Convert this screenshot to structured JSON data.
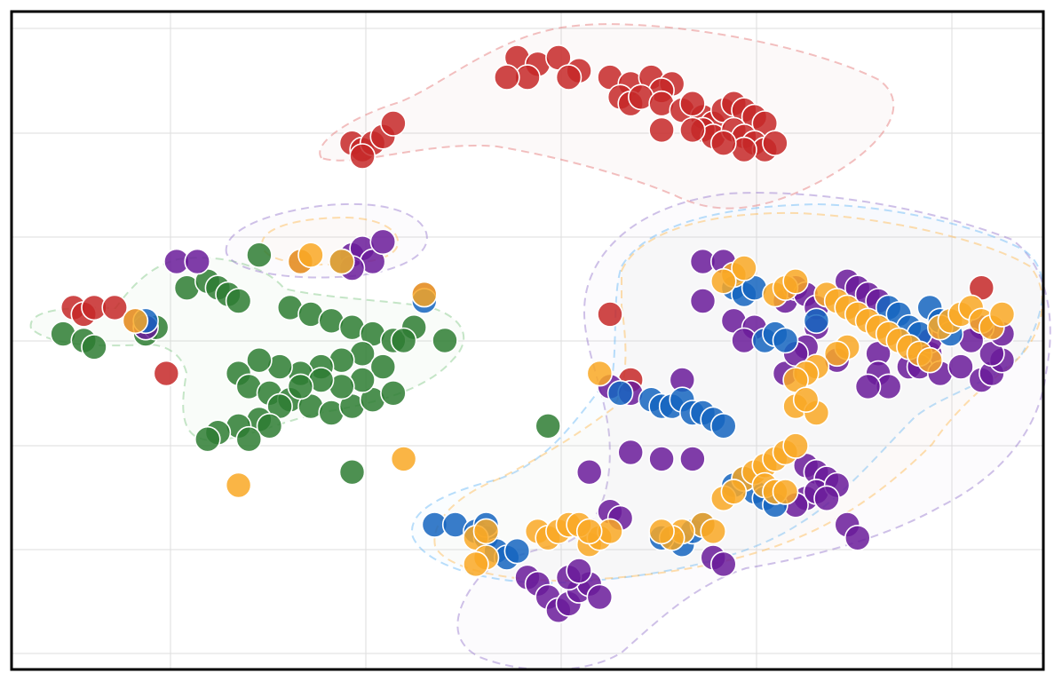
{
  "chart_data": {
    "type": "scatter",
    "title": "",
    "xlabel": "",
    "ylabel": "",
    "xlim": [
      0,
      100
    ],
    "ylim": [
      0,
      100
    ],
    "grid": true,
    "legend": "none",
    "colors": {
      "red": "#c62828",
      "green": "#2e7d32",
      "purple": "#6a1b9a",
      "blue": "#1565c0",
      "orange": "#f9a825"
    },
    "series": [
      {
        "name": "red",
        "color": "#c62828",
        "points": [
          [
            49,
            93
          ],
          [
            51,
            92
          ],
          [
            53,
            93
          ],
          [
            55,
            91
          ],
          [
            54,
            90
          ],
          [
            50,
            90
          ],
          [
            58,
            90
          ],
          [
            60,
            89
          ],
          [
            62,
            90
          ],
          [
            64,
            89
          ],
          [
            63,
            88
          ],
          [
            59,
            87
          ],
          [
            60,
            86
          ],
          [
            61,
            87
          ],
          [
            63,
            86
          ],
          [
            65,
            85
          ],
          [
            67,
            84
          ],
          [
            68,
            83
          ],
          [
            69,
            85
          ],
          [
            70,
            86
          ],
          [
            71,
            85
          ],
          [
            72,
            84
          ],
          [
            73,
            83
          ],
          [
            67,
            82
          ],
          [
            68,
            81
          ],
          [
            70,
            82
          ],
          [
            71,
            81
          ],
          [
            72,
            80
          ],
          [
            73,
            79
          ],
          [
            74,
            80
          ],
          [
            71,
            79
          ],
          [
            69,
            80
          ],
          [
            66,
            82
          ],
          [
            33,
            80
          ],
          [
            34,
            79
          ],
          [
            35,
            80
          ],
          [
            36,
            81
          ],
          [
            34,
            78
          ],
          [
            37,
            83
          ],
          [
            48,
            90
          ],
          [
            6,
            55
          ],
          [
            7,
            54
          ],
          [
            8,
            55
          ],
          [
            10,
            55
          ],
          [
            15,
            45
          ],
          [
            58,
            54
          ],
          [
            60,
            44
          ],
          [
            94,
            58
          ],
          [
            63,
            82
          ],
          [
            66,
            86
          ]
        ]
      },
      {
        "name": "green",
        "color": "#2e7d32",
        "points": [
          [
            5,
            51
          ],
          [
            7,
            50
          ],
          [
            8,
            49
          ],
          [
            13,
            51
          ],
          [
            14,
            52
          ],
          [
            17,
            58
          ],
          [
            19,
            59
          ],
          [
            20,
            58
          ],
          [
            21,
            57
          ],
          [
            22,
            56
          ],
          [
            27,
            55
          ],
          [
            29,
            54
          ],
          [
            31,
            53
          ],
          [
            33,
            52
          ],
          [
            35,
            51
          ],
          [
            37,
            50
          ],
          [
            39,
            52
          ],
          [
            38,
            50
          ],
          [
            34,
            48
          ],
          [
            32,
            47
          ],
          [
            30,
            46
          ],
          [
            28,
            45
          ],
          [
            26,
            46
          ],
          [
            24,
            47
          ],
          [
            22,
            45
          ],
          [
            23,
            43
          ],
          [
            25,
            42
          ],
          [
            27,
            41
          ],
          [
            29,
            40
          ],
          [
            31,
            39
          ],
          [
            33,
            40
          ],
          [
            35,
            41
          ],
          [
            37,
            42
          ],
          [
            36,
            46
          ],
          [
            34,
            44
          ],
          [
            32,
            43
          ],
          [
            30,
            44
          ],
          [
            28,
            43
          ],
          [
            26,
            40
          ],
          [
            24,
            38
          ],
          [
            22,
            37
          ],
          [
            20,
            36
          ],
          [
            25,
            37
          ],
          [
            19,
            35
          ],
          [
            23,
            35
          ],
          [
            24,
            63
          ],
          [
            33,
            30
          ],
          [
            52,
            37
          ],
          [
            42,
            50
          ]
        ]
      },
      {
        "name": "purple",
        "color": "#6a1b9a",
        "points": [
          [
            16,
            62
          ],
          [
            18,
            62
          ],
          [
            28,
            62
          ],
          [
            33,
            63
          ],
          [
            34,
            64
          ],
          [
            35,
            62
          ],
          [
            36,
            65
          ],
          [
            33,
            61
          ],
          [
            40,
            57
          ],
          [
            12,
            53
          ],
          [
            13,
            52
          ],
          [
            67,
            62
          ],
          [
            69,
            62
          ],
          [
            67,
            56
          ],
          [
            70,
            53
          ],
          [
            72,
            52
          ],
          [
            71,
            50
          ],
          [
            75,
            56
          ],
          [
            76,
            58
          ],
          [
            77,
            57
          ],
          [
            78,
            55
          ],
          [
            81,
            59
          ],
          [
            82,
            58
          ],
          [
            83,
            57
          ],
          [
            84,
            56
          ],
          [
            78,
            52
          ],
          [
            77,
            49
          ],
          [
            80,
            47
          ],
          [
            84,
            48
          ],
          [
            87,
            46
          ],
          [
            89,
            48
          ],
          [
            88,
            46
          ],
          [
            90,
            45
          ],
          [
            92,
            46
          ],
          [
            94,
            44
          ],
          [
            95,
            45
          ],
          [
            96,
            47
          ],
          [
            95,
            48
          ],
          [
            96,
            51
          ],
          [
            94,
            52
          ],
          [
            93,
            50
          ],
          [
            89,
            50
          ],
          [
            84,
            45
          ],
          [
            85,
            43
          ],
          [
            83,
            43
          ],
          [
            75,
            45
          ],
          [
            76,
            48
          ],
          [
            58,
            43
          ],
          [
            60,
            42
          ],
          [
            60,
            33
          ],
          [
            63,
            32
          ],
          [
            65,
            44
          ],
          [
            66,
            32
          ],
          [
            77,
            31
          ],
          [
            78,
            30
          ],
          [
            79,
            29
          ],
          [
            77,
            26
          ],
          [
            76,
            25
          ],
          [
            78,
            27
          ],
          [
            80,
            28
          ],
          [
            79,
            26
          ],
          [
            81,
            22
          ],
          [
            82,
            20
          ],
          [
            56,
            30
          ],
          [
            58,
            24
          ],
          [
            59,
            23
          ],
          [
            68,
            17
          ],
          [
            69,
            16
          ],
          [
            50,
            14
          ],
          [
            51,
            13
          ],
          [
            52,
            11
          ],
          [
            53,
            9
          ],
          [
            54,
            10
          ],
          [
            55,
            12
          ],
          [
            56,
            13
          ],
          [
            57,
            11
          ],
          [
            54,
            14
          ],
          [
            55,
            15
          ]
        ]
      },
      {
        "name": "blue",
        "color": "#1565c0",
        "points": [
          [
            13,
            53
          ],
          [
            32,
            62
          ],
          [
            40,
            56
          ],
          [
            59,
            42
          ],
          [
            62,
            41
          ],
          [
            63,
            40
          ],
          [
            64,
            40
          ],
          [
            65,
            41
          ],
          [
            66,
            39
          ],
          [
            67,
            39
          ],
          [
            68,
            38
          ],
          [
            69,
            37
          ],
          [
            72,
            27
          ],
          [
            73,
            26
          ],
          [
            74,
            25
          ],
          [
            70,
            28
          ],
          [
            71,
            29
          ],
          [
            64,
            20
          ],
          [
            65,
            19
          ],
          [
            66,
            21
          ],
          [
            67,
            22
          ],
          [
            41,
            22
          ],
          [
            43,
            22
          ],
          [
            45,
            21
          ],
          [
            46,
            20
          ],
          [
            46,
            22
          ],
          [
            47,
            18
          ],
          [
            48,
            17
          ],
          [
            49,
            18
          ],
          [
            63,
            20
          ],
          [
            70,
            58
          ],
          [
            71,
            57
          ],
          [
            72,
            58
          ],
          [
            73,
            50
          ],
          [
            74,
            51
          ],
          [
            75,
            50
          ],
          [
            78,
            53
          ],
          [
            85,
            55
          ],
          [
            86,
            54
          ],
          [
            87,
            52
          ],
          [
            88,
            51
          ],
          [
            89,
            55
          ],
          [
            90,
            53
          ],
          [
            91,
            51
          ]
        ]
      },
      {
        "name": "orange",
        "color": "#f9a825",
        "points": [
          [
            12,
            53
          ],
          [
            28,
            62
          ],
          [
            29,
            63
          ],
          [
            32,
            62
          ],
          [
            40,
            57
          ],
          [
            22,
            28
          ],
          [
            38,
            32
          ],
          [
            57,
            45
          ],
          [
            70,
            60
          ],
          [
            71,
            61
          ],
          [
            69,
            59
          ],
          [
            74,
            57
          ],
          [
            75,
            58
          ],
          [
            76,
            59
          ],
          [
            79,
            57
          ],
          [
            80,
            56
          ],
          [
            81,
            55
          ],
          [
            82,
            54
          ],
          [
            83,
            53
          ],
          [
            84,
            52
          ],
          [
            85,
            51
          ],
          [
            86,
            50
          ],
          [
            87,
            49
          ],
          [
            88,
            48
          ],
          [
            89,
            47
          ],
          [
            90,
            52
          ],
          [
            91,
            53
          ],
          [
            92,
            54
          ],
          [
            93,
            55
          ],
          [
            94,
            53
          ],
          [
            95,
            52
          ],
          [
            96,
            54
          ],
          [
            81,
            49
          ],
          [
            80,
            48
          ],
          [
            78,
            46
          ],
          [
            77,
            45
          ],
          [
            76,
            44
          ],
          [
            71,
            29
          ],
          [
            72,
            30
          ],
          [
            73,
            31
          ],
          [
            74,
            32
          ],
          [
            75,
            33
          ],
          [
            76,
            34
          ],
          [
            73,
            28
          ],
          [
            74,
            27
          ],
          [
            75,
            27
          ],
          [
            69,
            26
          ],
          [
            70,
            27
          ],
          [
            67,
            22
          ],
          [
            68,
            21
          ],
          [
            65,
            21
          ],
          [
            64,
            20
          ],
          [
            63,
            21
          ],
          [
            56,
            19
          ],
          [
            57,
            20
          ],
          [
            58,
            21
          ],
          [
            51,
            21
          ],
          [
            52,
            20
          ],
          [
            53,
            21
          ],
          [
            54,
            22
          ],
          [
            55,
            22
          ],
          [
            56,
            21
          ],
          [
            45,
            20
          ],
          [
            46,
            21
          ],
          [
            46,
            17
          ],
          [
            45,
            16
          ],
          [
            76,
            40
          ],
          [
            78,
            39
          ],
          [
            77,
            41
          ]
        ]
      }
    ]
  }
}
